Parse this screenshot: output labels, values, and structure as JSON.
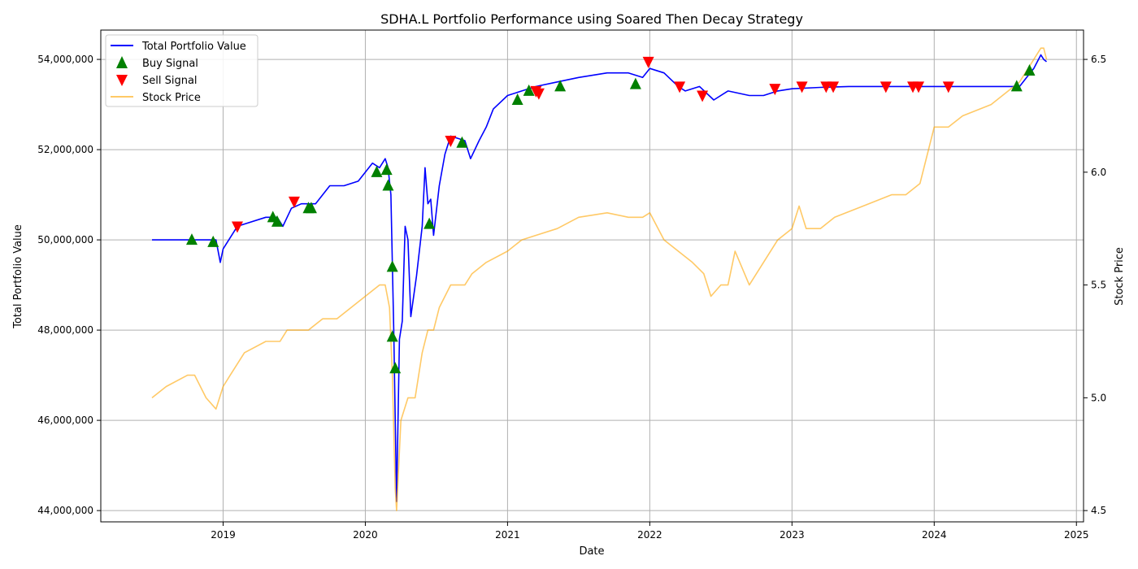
{
  "chart_data": {
    "type": "line",
    "title": "SDHA.L Portfolio Performance using Soared Then Decay Strategy",
    "xlabel": "Date",
    "ylabel": "Total Portfolio Value",
    "ylabel_right": "Stock Price",
    "x_ticks": [
      "2019",
      "2020",
      "2021",
      "2022",
      "2023",
      "2024",
      "2025"
    ],
    "y_ticks": [
      "44,000,000",
      "46,000,000",
      "48,000,000",
      "50,000,000",
      "52,000,000",
      "54,000,000"
    ],
    "y2_ticks": [
      "4.5",
      "5.0",
      "5.5",
      "6.0",
      "6.5"
    ],
    "xlim": [
      2018.14,
      2025.05
    ],
    "ylim": [
      43750000,
      54650000
    ],
    "y2lim": [
      4.45,
      6.63
    ],
    "grid": true,
    "legend_location": "upper left",
    "legend": [
      "Total Portfolio Value",
      "Buy Signal",
      "Sell Signal",
      "Stock Price"
    ],
    "colors": {
      "portfolio": "#0000ff",
      "buy": "#008000",
      "sell": "#ff0000",
      "stock": "#ffa500"
    },
    "series": [
      {
        "name": "Total Portfolio Value",
        "axis": "left",
        "x": [
          2018.5,
          2018.8,
          2018.95,
          2018.98,
          2019.0,
          2019.1,
          2019.3,
          2019.38,
          2019.42,
          2019.48,
          2019.55,
          2019.65,
          2019.75,
          2019.85,
          2019.95,
          2020.05,
          2020.1,
          2020.14,
          2020.16,
          2020.18,
          2020.2,
          2020.22,
          2020.24,
          2020.26,
          2020.28,
          2020.3,
          2020.32,
          2020.36,
          2020.4,
          2020.42,
          2020.44,
          2020.46,
          2020.48,
          2020.52,
          2020.56,
          2020.6,
          2020.7,
          2020.74,
          2020.8,
          2020.85,
          2020.9,
          2021.0,
          2021.1,
          2021.2,
          2021.35,
          2021.5,
          2021.7,
          2021.85,
          2021.95,
          2022.0,
          2022.1,
          2022.2,
          2022.25,
          2022.35,
          2022.45,
          2022.55,
          2022.7,
          2022.8,
          2022.9,
          2023.0,
          2023.2,
          2023.4,
          2023.8,
          2024.2,
          2024.6,
          2024.65,
          2024.7,
          2024.75,
          2024.77,
          2024.79
        ],
        "y": [
          50000000,
          50000000,
          50000000,
          49500000,
          49800000,
          50300000,
          50500000,
          50500000,
          50300000,
          50700000,
          50800000,
          50800000,
          51200000,
          51200000,
          51300000,
          51700000,
          51600000,
          51800000,
          51600000,
          51000000,
          48000000,
          44200000,
          47800000,
          48200000,
          50300000,
          50000000,
          48300000,
          49200000,
          50300000,
          51600000,
          50800000,
          50900000,
          50100000,
          51200000,
          51900000,
          52300000,
          52200000,
          51800000,
          52200000,
          52500000,
          52900000,
          53200000,
          53300000,
          53400000,
          53500000,
          53600000,
          53700000,
          53700000,
          53600000,
          53800000,
          53700000,
          53400000,
          53300000,
          53400000,
          53100000,
          53300000,
          53200000,
          53200000,
          53300000,
          53350000,
          53380000,
          53400000,
          53400000,
          53400000,
          53400000,
          53600000,
          53800000,
          54100000,
          54000000,
          53950000
        ]
      },
      {
        "name": "Stock Price",
        "axis": "right",
        "x": [
          2018.5,
          2018.6,
          2018.75,
          2018.8,
          2018.88,
          2018.95,
          2019.0,
          2019.05,
          2019.15,
          2019.3,
          2019.4,
          2019.45,
          2019.5,
          2019.6,
          2019.7,
          2019.8,
          2019.9,
          2020.0,
          2020.1,
          2020.14,
          2020.17,
          2020.19,
          2020.21,
          2020.22,
          2020.25,
          2020.3,
          2020.35,
          2020.4,
          2020.44,
          2020.48,
          2020.52,
          2020.6,
          2020.7,
          2020.75,
          2020.85,
          2021.0,
          2021.1,
          2021.2,
          2021.35,
          2021.5,
          2021.7,
          2021.85,
          2021.95,
          2022.0,
          2022.1,
          2022.2,
          2022.3,
          2022.38,
          2022.43,
          2022.5,
          2022.55,
          2022.6,
          2022.7,
          2022.8,
          2022.9,
          2023.0,
          2023.05,
          2023.1,
          2023.2,
          2023.3,
          2023.5,
          2023.7,
          2023.8,
          2023.9,
          2024.0,
          2024.1,
          2024.2,
          2024.4,
          2024.6,
          2024.65,
          2024.7,
          2024.75,
          2024.77,
          2024.79
        ],
        "y": [
          5.0,
          5.05,
          5.1,
          5.1,
          5.0,
          4.95,
          5.05,
          5.1,
          5.2,
          5.25,
          5.25,
          5.3,
          5.3,
          5.3,
          5.35,
          5.35,
          5.4,
          5.45,
          5.5,
          5.5,
          5.4,
          5.1,
          4.6,
          4.5,
          4.9,
          5.0,
          5.0,
          5.2,
          5.3,
          5.3,
          5.4,
          5.5,
          5.5,
          5.55,
          5.6,
          5.65,
          5.7,
          5.72,
          5.75,
          5.8,
          5.82,
          5.8,
          5.8,
          5.82,
          5.7,
          5.65,
          5.6,
          5.55,
          5.45,
          5.5,
          5.5,
          5.65,
          5.5,
          5.6,
          5.7,
          5.75,
          5.85,
          5.75,
          5.75,
          5.8,
          5.85,
          5.9,
          5.9,
          5.95,
          6.2,
          6.2,
          6.25,
          6.3,
          6.4,
          6.45,
          6.5,
          6.55,
          6.55,
          6.5
        ]
      }
    ],
    "buy_signals": {
      "x": [
        2018.78,
        2018.93,
        2019.35,
        2019.38,
        2019.6,
        2019.62,
        2020.08,
        2020.15,
        2020.16,
        2020.19,
        2020.19,
        2020.21,
        2020.45,
        2020.68,
        2021.07,
        2021.15,
        2021.37,
        2021.9,
        2024.58,
        2024.67
      ],
      "y": [
        50000000,
        49950000,
        50500000,
        50400000,
        50700000,
        50700000,
        51500000,
        51550000,
        51200000,
        49400000,
        47850000,
        47150000,
        50350000,
        52150000,
        53100000,
        53300000,
        53400000,
        53450000,
        53400000,
        53750000
      ]
    },
    "sell_signals": {
      "x": [
        2019.1,
        2019.5,
        2020.6,
        2021.2,
        2021.22,
        2021.99,
        2022.21,
        2022.37,
        2022.88,
        2023.07,
        2023.24,
        2023.29,
        2023.66,
        2023.85,
        2023.89,
        2024.1
      ],
      "y": [
        50300000,
        50850000,
        52200000,
        53300000,
        53250000,
        53950000,
        53400000,
        53200000,
        53350000,
        53400000,
        53400000,
        53400000,
        53400000,
        53400000,
        53400000,
        53400000
      ]
    }
  }
}
